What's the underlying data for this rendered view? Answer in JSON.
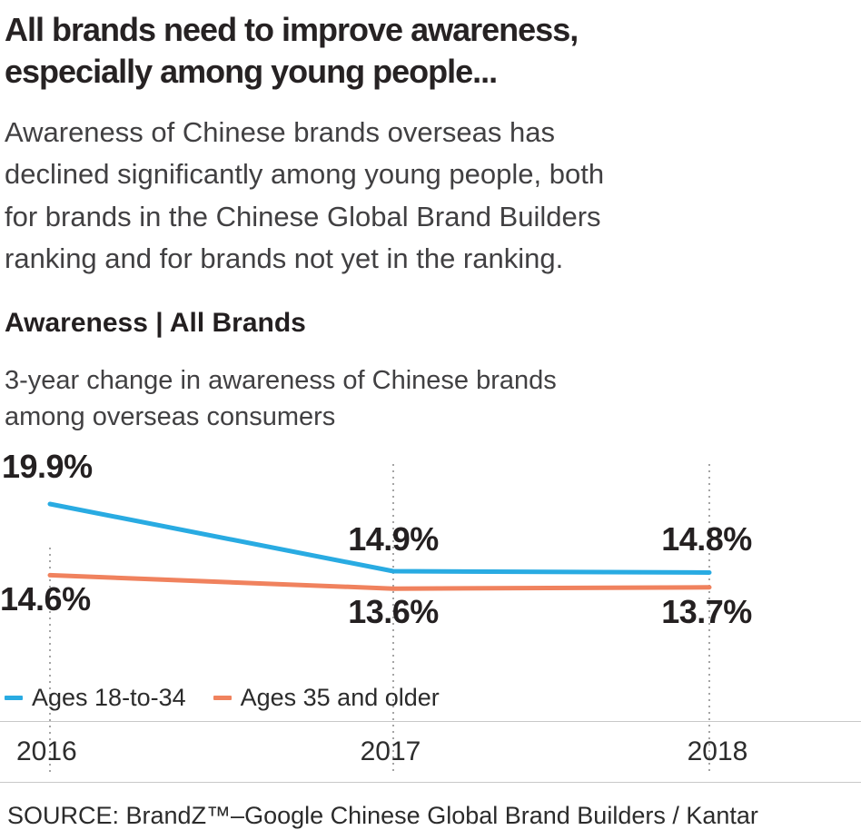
{
  "header": {
    "title_lines": [
      "All brands need to improve awareness,",
      "especially among young people..."
    ],
    "intro_lines": [
      "Awareness of Chinese brands overseas has",
      "declined significantly among young people, both",
      "for brands in the Chinese Global Brand Builders",
      "ranking and for brands not yet in the ranking."
    ]
  },
  "chart_data": {
    "type": "line",
    "title": "Awareness | All Brands",
    "subtitle_lines": [
      "3-year change in awareness of Chinese brands",
      "among overseas consumers"
    ],
    "categories": [
      "2016",
      "2017",
      "2018"
    ],
    "series": [
      {
        "name": "Ages 18-to-34",
        "color": "#29abe2",
        "values": [
          19.9,
          14.9,
          14.8
        ],
        "labels": [
          "19.9%",
          "14.9%",
          "14.8%"
        ]
      },
      {
        "name": "Ages 35 and older",
        "color": "#f0825e",
        "values": [
          14.6,
          13.6,
          13.7
        ],
        "labels": [
          "14.6%",
          "13.6%",
          "13.7%"
        ]
      }
    ],
    "unit": "%",
    "xlabel": "",
    "ylabel": "",
    "ylim": [
      13,
      21
    ],
    "grid": "vertical-dotted",
    "legend_position": "bottom"
  },
  "source": {
    "text": "SOURCE: BrandZ™–Google Chinese Global Brand Builders / Kantar"
  },
  "colors": {
    "text_dark": "#231f20",
    "text_body": "#414042",
    "accent_blue": "#29abe2",
    "accent_orange": "#f0825e",
    "grid": "#a5a5a5",
    "axis_line": "#c8c8c8"
  }
}
